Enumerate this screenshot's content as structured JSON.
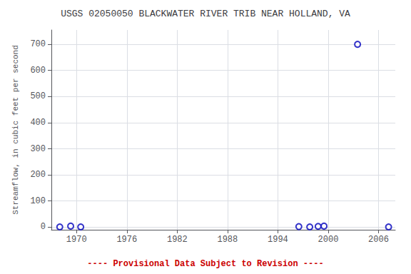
{
  "chart_data": {
    "type": "scatter",
    "title": "USGS 02050050 BLACKWATER RIVER TRIB NEAR HOLLAND, VA",
    "ylabel": "Streamflow, in cubic feet per second",
    "x": [
      1968.0,
      1969.3,
      1970.5,
      1996.5,
      1997.8,
      1998.8,
      1999.5,
      2003.5,
      2007.2
    ],
    "values": [
      1,
      4,
      1,
      2,
      1,
      3,
      4,
      700,
      1
    ],
    "color": "#0000bb",
    "marker": "open-circle",
    "xlim": [
      1967,
      2008
    ],
    "xticks": [
      1970,
      1976,
      1982,
      1988,
      1994,
      2000,
      2006
    ],
    "ylim": [
      -10,
      755
    ],
    "yticks": [
      0,
      100,
      200,
      300,
      400,
      500,
      600,
      700
    ],
    "grid": true,
    "annotations": [
      {
        "text": "---- Provisional Data Subject to Revision ----",
        "color": "#cc0000"
      }
    ]
  }
}
